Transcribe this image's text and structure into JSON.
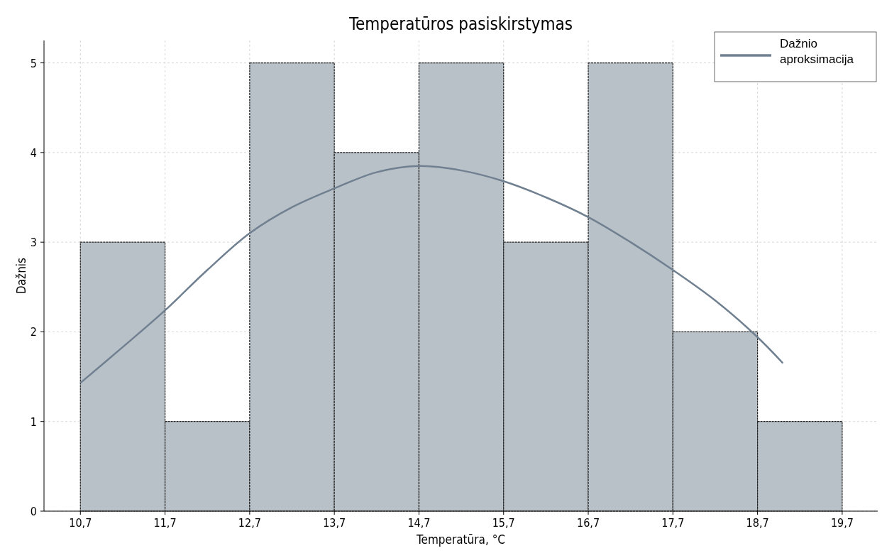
{
  "chart_data": {
    "type": "histogram",
    "title": "Temperatūros pasiskirstymas",
    "xlabel": "Temperatūra, °C",
    "ylabel": "Dažnis",
    "xlim": [
      10.27,
      20.12
    ],
    "ylim": [
      0,
      5.25
    ],
    "xticks": [
      {
        "value": 10.7,
        "label": "10,7"
      },
      {
        "value": 11.7,
        "label": "11,7"
      },
      {
        "value": 12.7,
        "label": "12,7"
      },
      {
        "value": 13.7,
        "label": "13,7"
      },
      {
        "value": 14.7,
        "label": "14,7"
      },
      {
        "value": 15.7,
        "label": "15,7"
      },
      {
        "value": 16.7,
        "label": "16,7"
      },
      {
        "value": 17.7,
        "label": "17,7"
      },
      {
        "value": 18.7,
        "label": "18,7"
      },
      {
        "value": 19.7,
        "label": "19,7"
      }
    ],
    "yticks": [
      0,
      1,
      2,
      3,
      4,
      5
    ],
    "grid": true,
    "legend": "top right",
    "series": [
      {
        "color": "#b8c0c8",
        "bins": [
          10.7,
          11.7,
          12.7,
          13.7,
          14.7,
          15.7,
          16.7,
          17.7,
          18.7,
          19.7
        ],
        "values": [
          3,
          1,
          5,
          4,
          5,
          3,
          5,
          2,
          1
        ]
      },
      {
        "type": "line",
        "name": "Dažnio aproksimacija",
        "color": "#708090",
        "x": [
          10.7,
          11.2,
          11.7,
          12.2,
          12.7,
          13.2,
          13.7,
          14.2,
          14.7,
          15.2,
          15.7,
          16.2,
          16.7,
          17.2,
          17.7,
          18.2,
          18.7,
          19.0
        ],
        "values": [
          1.43,
          1.83,
          2.24,
          2.69,
          3.1,
          3.39,
          3.6,
          3.78,
          3.85,
          3.8,
          3.68,
          3.5,
          3.28,
          3.0,
          2.69,
          2.35,
          1.94,
          1.65
        ]
      }
    ]
  }
}
